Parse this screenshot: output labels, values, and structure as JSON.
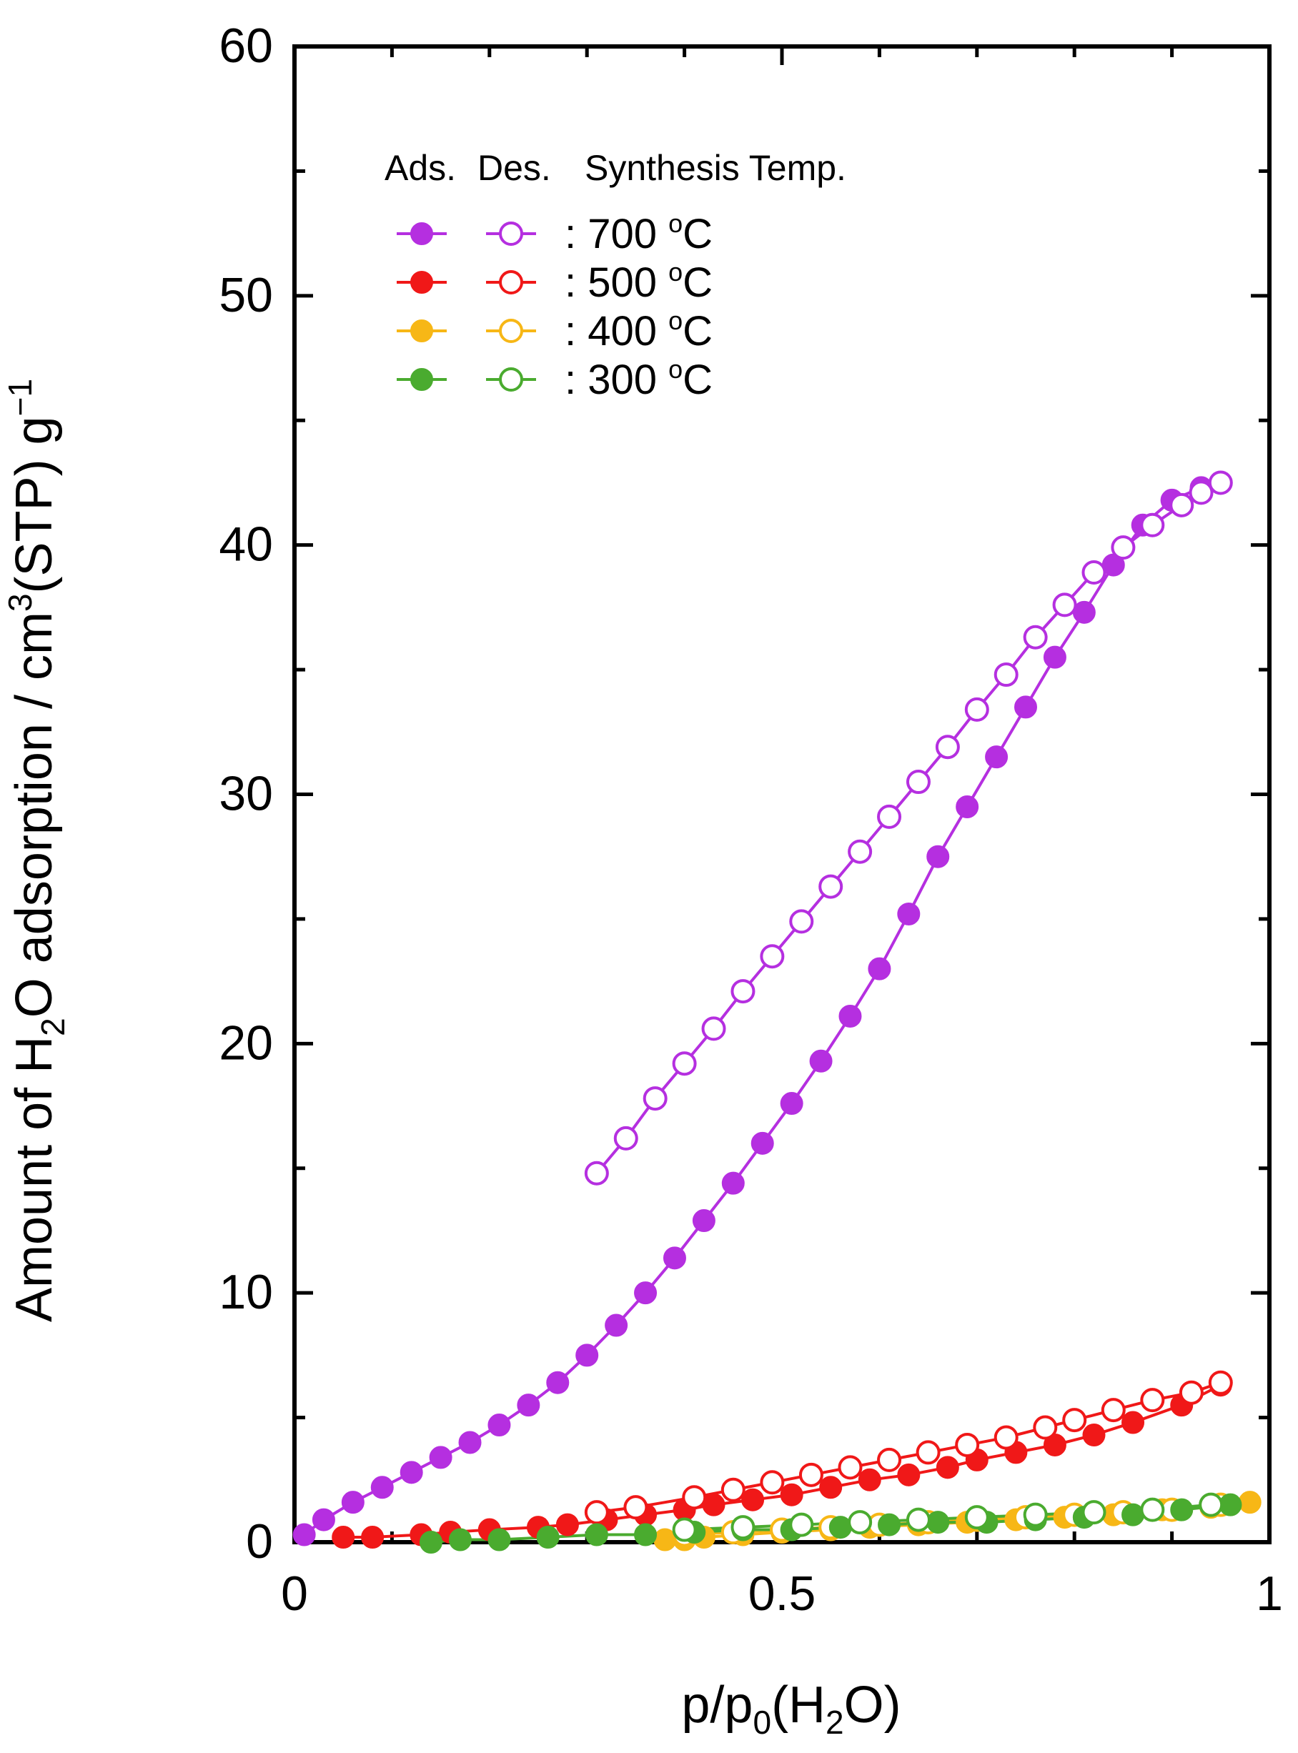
{
  "chart_data": {
    "type": "scatter",
    "title": "",
    "xlabel_parts": {
      "pre": "p/p",
      "sub": "0",
      "post": "(H",
      "sub2": "2",
      "post2": "O)"
    },
    "ylabel_parts": {
      "pre": "Amount of H",
      "sub": "2",
      "mid": "O adsorption / cm",
      "sup": "3",
      "mid2": "(STP) g",
      "sup2": "−1"
    },
    "xlim": [
      0,
      1
    ],
    "ylim": [
      0,
      60
    ],
    "xticks": [
      0,
      0.5,
      1
    ],
    "xtick_labels": [
      "0",
      "0.5",
      "1"
    ],
    "yticks": [
      0,
      10,
      20,
      30,
      40,
      50,
      60
    ],
    "ytick_labels": [
      "0",
      "10",
      "20",
      "30",
      "40",
      "50",
      "60"
    ],
    "grid": false,
    "legend": {
      "position": "top-left",
      "header_ads": "Ads.",
      "header_des": "Des.",
      "header_temp": "Synthesis Temp.",
      "entries": [
        {
          "temp": ": 700 ",
          "unit": "C",
          "deg": "o",
          "color": "#b52fe0"
        },
        {
          "temp": ": 500 ",
          "unit": "C",
          "deg": "o",
          "color": "#f01818"
        },
        {
          "temp": ": 400 ",
          "unit": "C",
          "deg": "o",
          "color": "#f7b716"
        },
        {
          "temp": ": 300 ",
          "unit": "C",
          "deg": "o",
          "color": "#4aab2f"
        }
      ]
    },
    "series": [
      {
        "name": "700 C Ads.",
        "color": "#b52fe0",
        "filled": true,
        "x": [
          0.01,
          0.03,
          0.06,
          0.09,
          0.12,
          0.15,
          0.18,
          0.21,
          0.24,
          0.27,
          0.3,
          0.33,
          0.36,
          0.39,
          0.42,
          0.45,
          0.48,
          0.51,
          0.54,
          0.57,
          0.6,
          0.63,
          0.66,
          0.69,
          0.72,
          0.75,
          0.78,
          0.81,
          0.84,
          0.87,
          0.9,
          0.93,
          0.95
        ],
        "y": [
          0.3,
          0.9,
          1.6,
          2.2,
          2.8,
          3.4,
          4.0,
          4.7,
          5.5,
          6.4,
          7.5,
          8.7,
          10.0,
          11.4,
          12.9,
          14.4,
          16.0,
          17.6,
          19.3,
          21.1,
          23.0,
          25.2,
          27.5,
          29.5,
          31.5,
          33.5,
          35.5,
          37.3,
          39.2,
          40.8,
          41.8,
          42.3,
          42.5
        ]
      },
      {
        "name": "700 C Des.",
        "color": "#b52fe0",
        "filled": false,
        "x": [
          0.31,
          0.34,
          0.37,
          0.4,
          0.43,
          0.46,
          0.49,
          0.52,
          0.55,
          0.58,
          0.61,
          0.64,
          0.67,
          0.7,
          0.73,
          0.76,
          0.79,
          0.82,
          0.85,
          0.88,
          0.91,
          0.93,
          0.95
        ],
        "y": [
          14.8,
          16.2,
          17.8,
          19.2,
          20.6,
          22.1,
          23.5,
          24.9,
          26.3,
          27.7,
          29.1,
          30.5,
          31.9,
          33.4,
          34.8,
          36.3,
          37.6,
          38.9,
          39.9,
          40.8,
          41.6,
          42.1,
          42.5
        ]
      },
      {
        "name": "500 C Ads.",
        "color": "#f01818",
        "filled": true,
        "x": [
          0.05,
          0.08,
          0.13,
          0.16,
          0.2,
          0.25,
          0.28,
          0.32,
          0.36,
          0.4,
          0.43,
          0.47,
          0.51,
          0.55,
          0.59,
          0.63,
          0.67,
          0.7,
          0.74,
          0.78,
          0.82,
          0.86,
          0.91,
          0.95
        ],
        "y": [
          0.2,
          0.2,
          0.3,
          0.4,
          0.5,
          0.6,
          0.7,
          0.9,
          1.1,
          1.3,
          1.5,
          1.7,
          1.9,
          2.2,
          2.5,
          2.7,
          3.0,
          3.3,
          3.6,
          3.9,
          4.3,
          4.8,
          5.5,
          6.3
        ]
      },
      {
        "name": "500 C Des.",
        "color": "#f01818",
        "filled": false,
        "x": [
          0.31,
          0.35,
          0.41,
          0.45,
          0.49,
          0.53,
          0.57,
          0.61,
          0.65,
          0.69,
          0.73,
          0.77,
          0.8,
          0.84,
          0.88,
          0.92,
          0.95
        ],
        "y": [
          1.2,
          1.4,
          1.8,
          2.1,
          2.4,
          2.7,
          3.0,
          3.3,
          3.6,
          3.9,
          4.2,
          4.6,
          4.9,
          5.3,
          5.7,
          6.0,
          6.4
        ]
      },
      {
        "name": "400 C Ads.",
        "color": "#f7b716",
        "filled": true,
        "x": [
          0.38,
          0.4,
          0.42,
          0.46,
          0.5,
          0.55,
          0.59,
          0.64,
          0.69,
          0.74,
          0.79,
          0.84,
          0.89,
          0.94,
          0.98
        ],
        "y": [
          0.1,
          0.1,
          0.2,
          0.3,
          0.4,
          0.5,
          0.6,
          0.7,
          0.8,
          0.9,
          1.0,
          1.1,
          1.3,
          1.4,
          1.6
        ]
      },
      {
        "name": "400 C Des.",
        "color": "#f7b716",
        "filled": false,
        "x": [
          0.4,
          0.45,
          0.5,
          0.55,
          0.6,
          0.65,
          0.7,
          0.75,
          0.8,
          0.85,
          0.9,
          0.95
        ],
        "y": [
          0.3,
          0.4,
          0.5,
          0.6,
          0.7,
          0.8,
          0.9,
          1.0,
          1.1,
          1.2,
          1.3,
          1.5
        ]
      },
      {
        "name": "300 C Ads.",
        "color": "#4aab2f",
        "filled": true,
        "x": [
          0.14,
          0.17,
          0.21,
          0.26,
          0.31,
          0.36,
          0.41,
          0.46,
          0.51,
          0.56,
          0.61,
          0.66,
          0.71,
          0.76,
          0.81,
          0.86,
          0.91,
          0.96
        ],
        "y": [
          0.0,
          0.1,
          0.1,
          0.2,
          0.3,
          0.3,
          0.4,
          0.5,
          0.5,
          0.6,
          0.7,
          0.8,
          0.8,
          0.9,
          1.0,
          1.1,
          1.3,
          1.5
        ]
      },
      {
        "name": "300 C Des.",
        "color": "#4aab2f",
        "filled": false,
        "x": [
          0.4,
          0.46,
          0.52,
          0.58,
          0.64,
          0.7,
          0.76,
          0.82,
          0.88,
          0.94
        ],
        "y": [
          0.5,
          0.6,
          0.7,
          0.8,
          0.9,
          1.0,
          1.1,
          1.2,
          1.3,
          1.5
        ]
      }
    ]
  }
}
